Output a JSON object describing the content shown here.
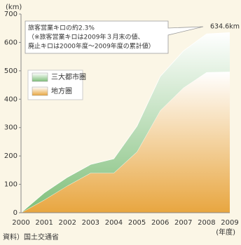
{
  "chart_data": {
    "type": "stacked-area",
    "y_label": "(km)",
    "x_label": "(年度)",
    "source": "資料）国土交通省",
    "categories": [
      "2000",
      "2001",
      "2002",
      "2003",
      "2004",
      "2005",
      "2006",
      "2007",
      "2008",
      "2009"
    ],
    "series": [
      {
        "name": "地方圏",
        "color": "#e8a640",
        "values": [
          0,
          45,
          95,
          140,
          140,
          215,
          360,
          440,
          495,
          497
        ]
      },
      {
        "name": "三大都市圏",
        "color": "#7fbf7a",
        "values": [
          0,
          25,
          30,
          30,
          50,
          90,
          120,
          130,
          135,
          137.6
        ]
      }
    ],
    "ylim": [
      0,
      700
    ],
    "yticks": [
      0,
      100,
      200,
      300,
      400,
      500,
      600,
      700
    ],
    "annotation": {
      "lines": [
        "旅客営業キロの約2.3%",
        "（※旅客営業キロは2009年３月末の値、",
        "廃止キロは2000年度〜2009年度の累計値）"
      ],
      "value_label": "634.6km"
    }
  }
}
